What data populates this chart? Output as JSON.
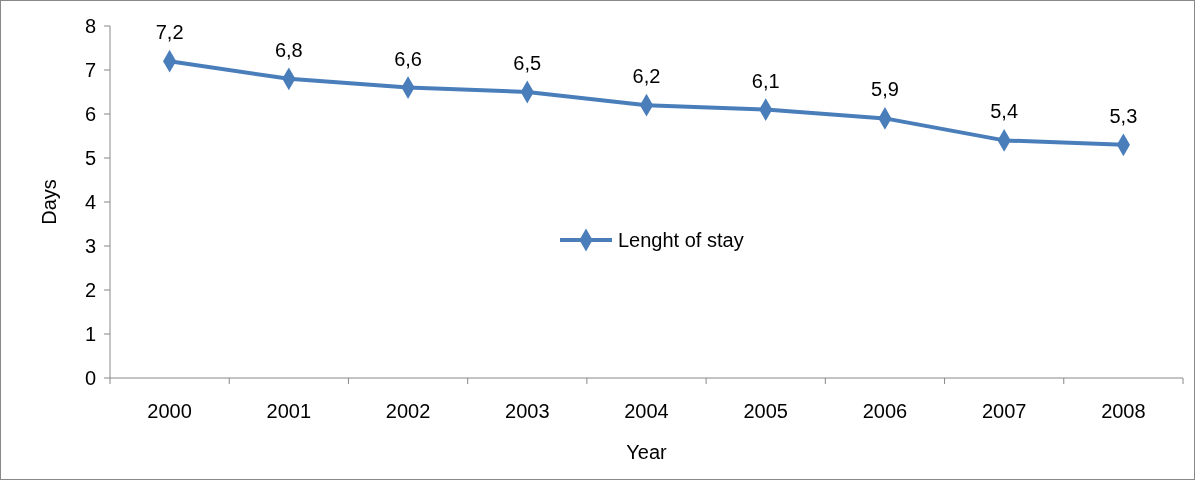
{
  "chart_data": {
    "type": "line",
    "xlabel": "Year",
    "ylabel": "Days",
    "categories": [
      "2000",
      "2001",
      "2002",
      "2003",
      "2004",
      "2005",
      "2006",
      "2007",
      "2008"
    ],
    "series": [
      {
        "name": "Lenght of stay",
        "color": "#4a7ebb",
        "values": [
          7.2,
          6.8,
          6.6,
          6.5,
          6.2,
          6.1,
          5.9,
          5.4,
          5.3
        ],
        "value_labels": [
          "7,2",
          "6,8",
          "6,6",
          "6,5",
          "6,2",
          "6,1",
          "5,9",
          "5,4",
          "5,3"
        ]
      }
    ],
    "ylim": [
      0,
      8
    ],
    "yticks": [
      0,
      1,
      2,
      3,
      4,
      5,
      6,
      7,
      8
    ],
    "grid": false,
    "legend": "center",
    "marker": "diamond",
    "line_style": "solid"
  }
}
